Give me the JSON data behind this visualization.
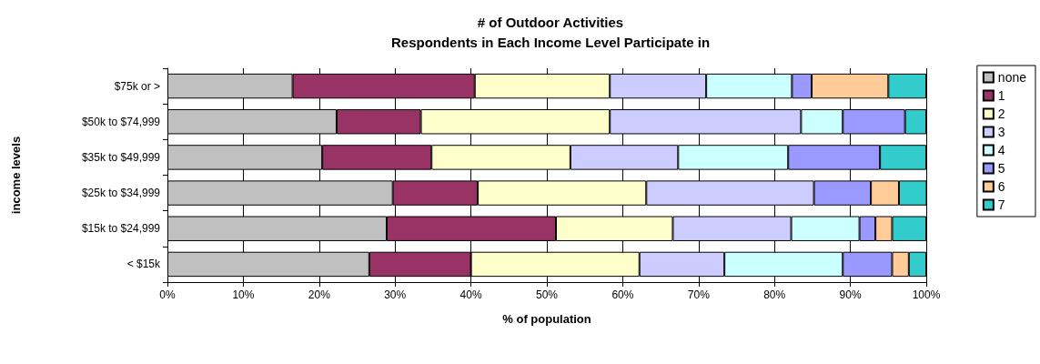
{
  "chart_data": {
    "type": "bar",
    "orientation": "horizontal",
    "stacked": true,
    "title": "# of Outdoor Activities\nRespondents in Each Income Level Participate in",
    "xlabel": "% of population",
    "ylabel": "income levels",
    "categories": [
      "$75k or >",
      "$50k to $74,999",
      "$35k to $49,999",
      "$25k to $34,999",
      "$15k to $24,999",
      "< $15k"
    ],
    "series": [
      {
        "name": "none",
        "color": "#c0c0c0",
        "values": [
          16.5,
          22.3,
          20.4,
          29.7,
          28.9,
          26.6
        ]
      },
      {
        "name": "1",
        "color": "#993366",
        "values": [
          24,
          11.1,
          14.4,
          11.2,
          22.3,
          13.4
        ]
      },
      {
        "name": "2",
        "color": "#ffffcc",
        "values": [
          17.8,
          24.9,
          18.3,
          22.2,
          15.4,
          22.2
        ]
      },
      {
        "name": "3",
        "color": "#ccccff",
        "values": [
          12.7,
          25.2,
          14.2,
          22.1,
          15.6,
          11.2
        ]
      },
      {
        "name": "4",
        "color": "#ccffff",
        "values": [
          11.3,
          5.5,
          14.5,
          0,
          9.0,
          15.6
        ]
      },
      {
        "name": "5",
        "color": "#9999ff",
        "values": [
          2.6,
          8.2,
          12.1,
          7.5,
          2.1,
          6.5
        ]
      },
      {
        "name": "6",
        "color": "#ffcc99",
        "values": [
          10.1,
          0,
          0,
          3.7,
          2.2,
          2.2
        ]
      },
      {
        "name": "7",
        "color": "#33cccc",
        "values": [
          5.0,
          2.8,
          6.1,
          3.7,
          4.5,
          2.3
        ]
      }
    ],
    "xlim": [
      0,
      100
    ],
    "xticks": [
      {
        "value": 0,
        "label": "0%"
      },
      {
        "value": 10,
        "label": "10%"
      },
      {
        "value": 20,
        "label": "20%"
      },
      {
        "value": 30,
        "label": "30%"
      },
      {
        "value": 40,
        "label": "40%"
      },
      {
        "value": 50,
        "label": "50%"
      },
      {
        "value": 60,
        "label": "60%"
      },
      {
        "value": 70,
        "label": "70%"
      },
      {
        "value": 80,
        "label": "80%"
      },
      {
        "value": 90,
        "label": "90%"
      },
      {
        "value": 100,
        "label": "100%"
      }
    ],
    "grid": "x",
    "legend": "right"
  }
}
